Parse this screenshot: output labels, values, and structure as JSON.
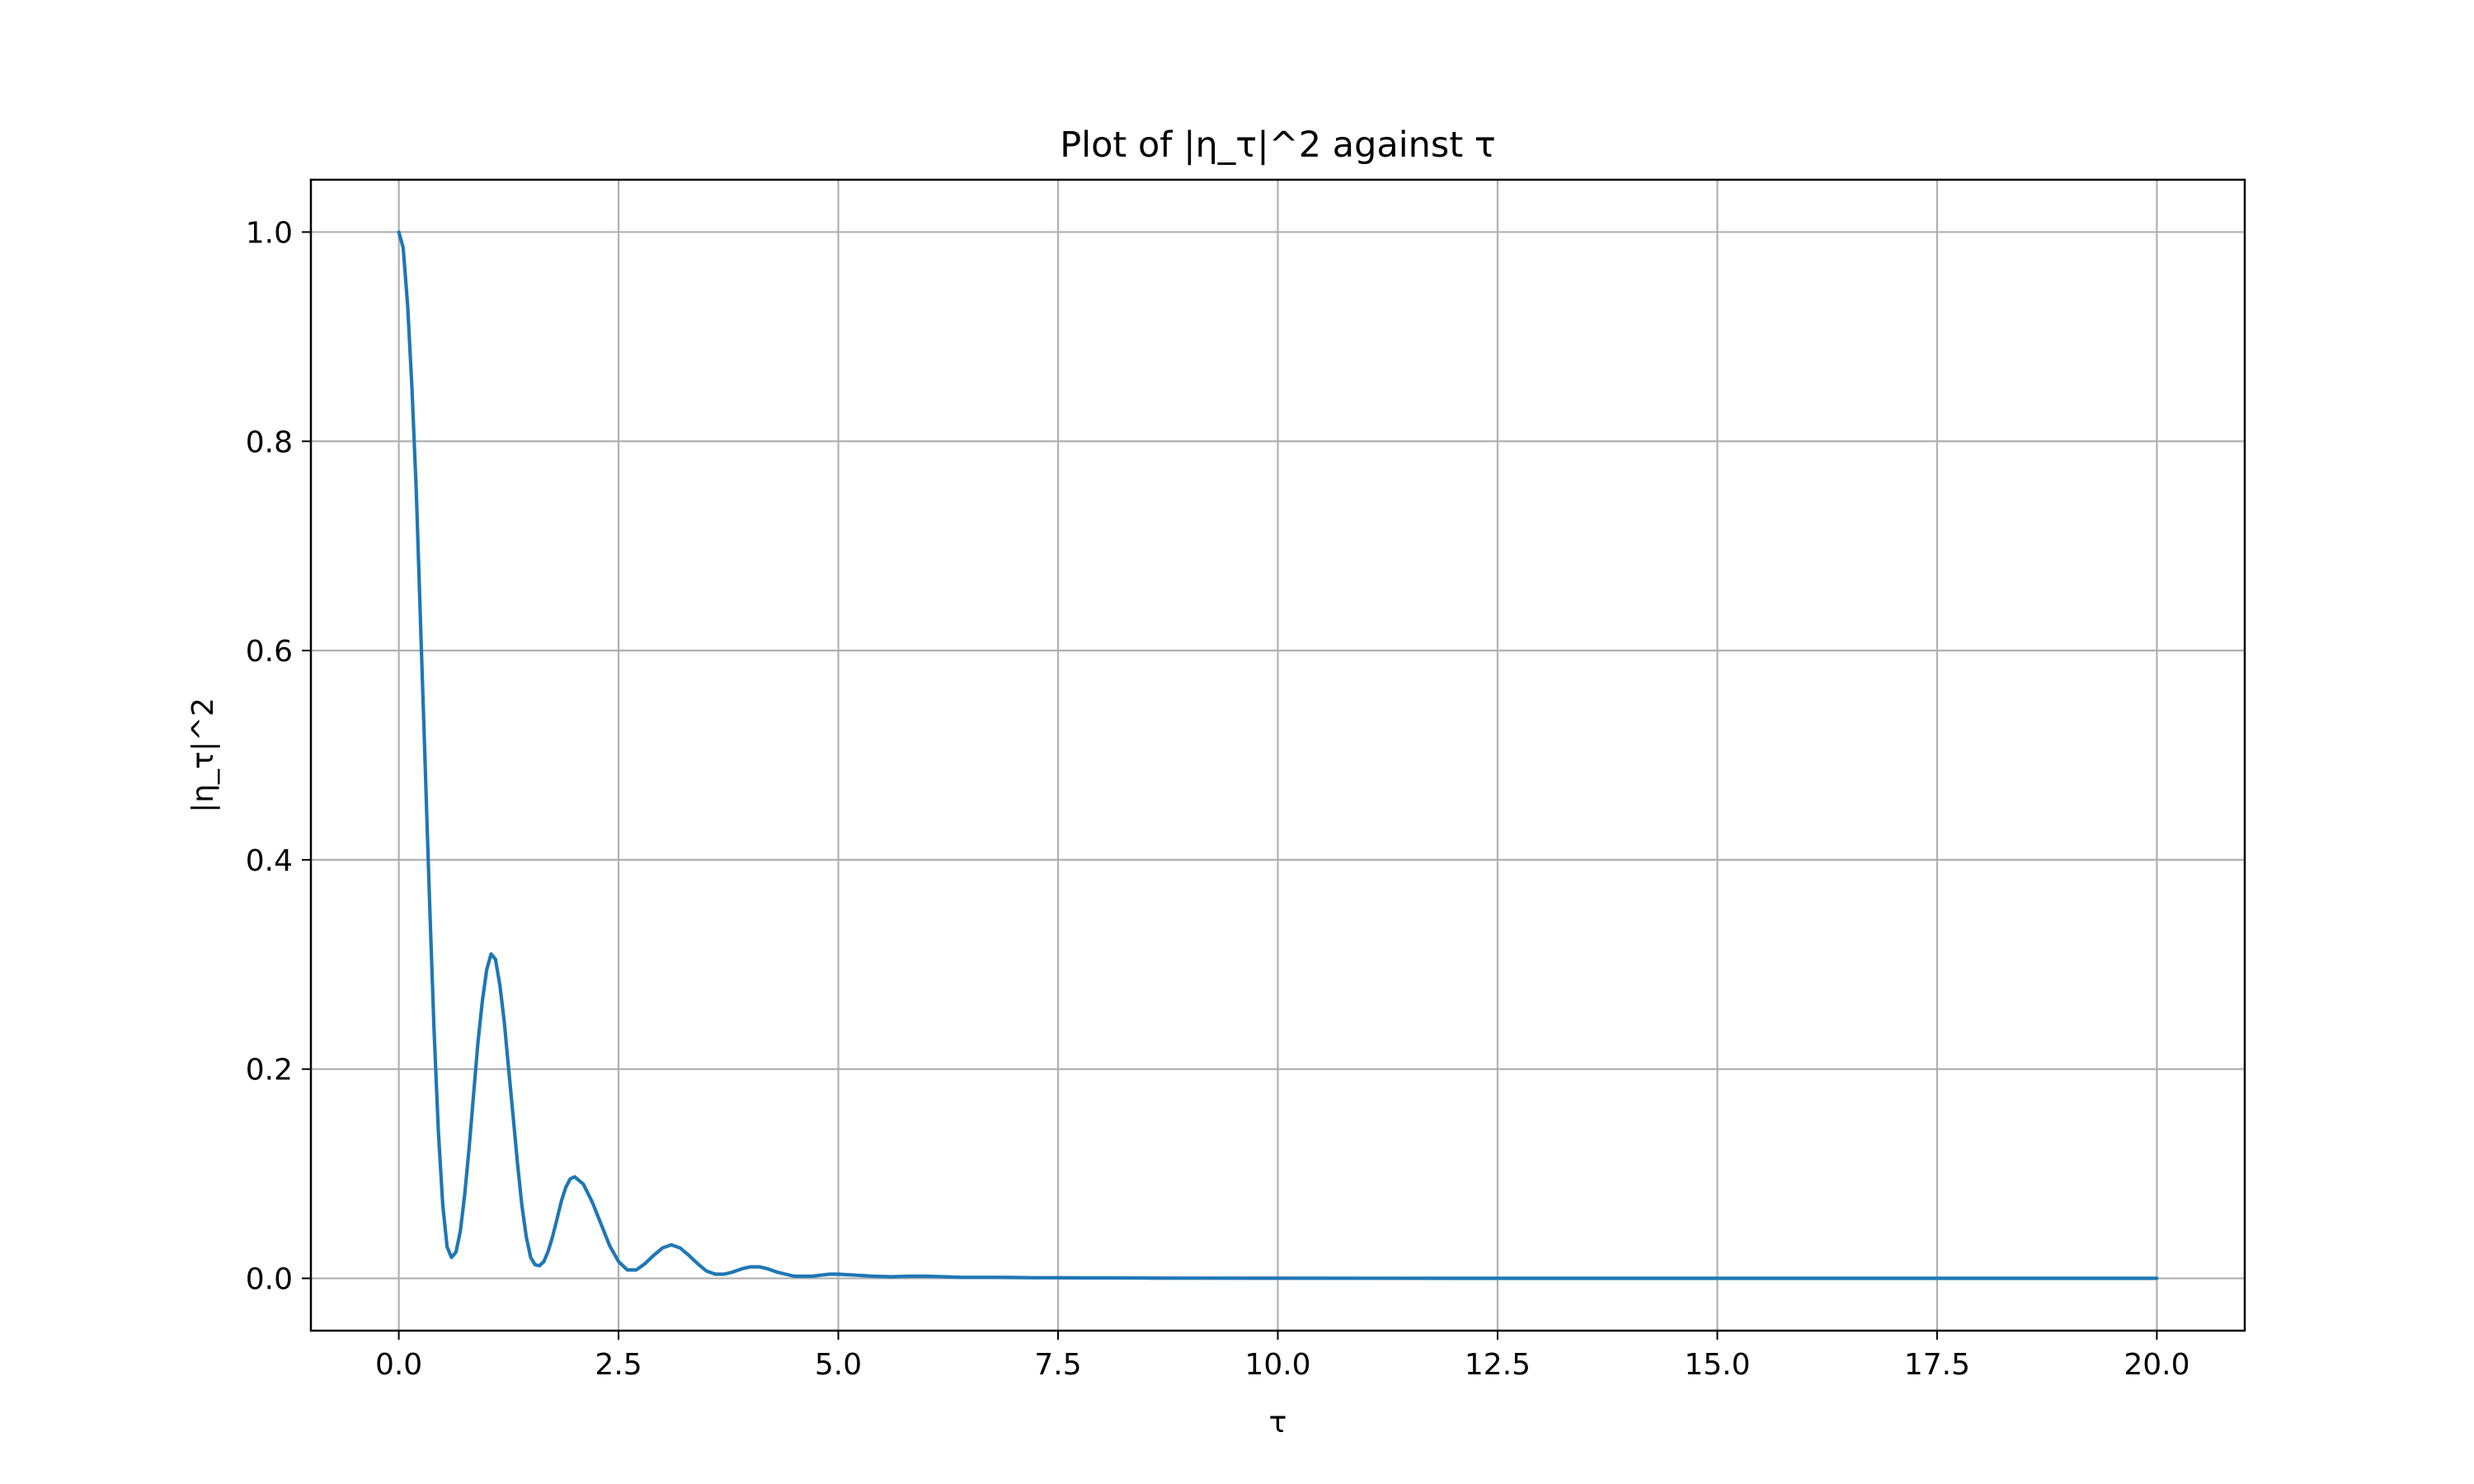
{
  "chart_data": {
    "type": "line",
    "title": "Plot of |η_τ|^2 against τ",
    "xlabel": "τ",
    "ylabel": "|η_τ|^2",
    "xlim": [
      -1.0,
      21.0
    ],
    "ylim": [
      -0.05,
      1.05
    ],
    "xticks": [
      0.0,
      2.5,
      5.0,
      7.5,
      10.0,
      12.5,
      15.0,
      17.5,
      20.0
    ],
    "xtick_labels": [
      "0.0",
      "2.5",
      "5.0",
      "7.5",
      "10.0",
      "12.5",
      "15.0",
      "17.5",
      "20.0"
    ],
    "yticks": [
      0.0,
      0.2,
      0.4,
      0.6,
      0.8,
      1.0
    ],
    "ytick_labels": [
      "0.0",
      "0.2",
      "0.4",
      "0.6",
      "0.8",
      "1.0"
    ],
    "grid": true,
    "colors": {
      "line": "#1f77b4",
      "grid": "#b0b0b0",
      "axes": "#000000"
    },
    "series": [
      {
        "x": [
          0.0,
          0.05,
          0.1,
          0.15,
          0.2,
          0.25,
          0.3,
          0.35,
          0.4,
          0.45,
          0.5,
          0.55,
          0.6,
          0.65,
          0.7,
          0.75,
          0.8,
          0.85,
          0.9,
          0.95,
          1.0,
          1.05,
          1.1,
          1.15,
          1.2,
          1.25,
          1.3,
          1.35,
          1.4,
          1.45,
          1.5,
          1.55,
          1.6,
          1.65,
          1.7,
          1.75,
          1.8,
          1.85,
          1.9,
          1.95,
          2.0,
          2.1,
          2.2,
          2.3,
          2.4,
          2.5,
          2.6,
          2.7,
          2.8,
          2.9,
          3.0,
          3.1,
          3.2,
          3.3,
          3.4,
          3.5,
          3.6,
          3.7,
          3.8,
          3.9,
          4.0,
          4.1,
          4.2,
          4.3,
          4.4,
          4.5,
          4.6,
          4.7,
          4.8,
          4.9,
          5.0,
          5.2,
          5.4,
          5.6,
          5.8,
          6.0,
          6.2,
          6.4,
          6.6,
          6.8,
          7.0,
          7.2,
          7.4,
          7.6,
          7.8,
          8.0,
          8.5,
          9.0,
          10.0,
          12.0,
          14.0,
          16.0,
          18.0,
          20.0
        ],
        "y": [
          1.0,
          0.985,
          0.93,
          0.85,
          0.75,
          0.62,
          0.49,
          0.36,
          0.24,
          0.14,
          0.07,
          0.03,
          0.02,
          0.025,
          0.045,
          0.08,
          0.125,
          0.175,
          0.225,
          0.265,
          0.295,
          0.31,
          0.305,
          0.28,
          0.245,
          0.2,
          0.155,
          0.11,
          0.07,
          0.04,
          0.02,
          0.013,
          0.012,
          0.016,
          0.026,
          0.04,
          0.057,
          0.074,
          0.087,
          0.095,
          0.097,
          0.09,
          0.073,
          0.052,
          0.031,
          0.016,
          0.008,
          0.008,
          0.014,
          0.022,
          0.029,
          0.032,
          0.029,
          0.022,
          0.014,
          0.007,
          0.004,
          0.004,
          0.006,
          0.009,
          0.011,
          0.011,
          0.009,
          0.006,
          0.004,
          0.002,
          0.002,
          0.002,
          0.003,
          0.004,
          0.004,
          0.003,
          0.002,
          0.0015,
          0.002,
          0.002,
          0.0015,
          0.001,
          0.001,
          0.001,
          0.0008,
          0.0006,
          0.0006,
          0.0005,
          0.0004,
          0.0004,
          0.0003,
          0.0002,
          0.0001,
          5e-05,
          3e-05,
          2e-05,
          1e-05,
          0.0
        ]
      }
    ]
  }
}
